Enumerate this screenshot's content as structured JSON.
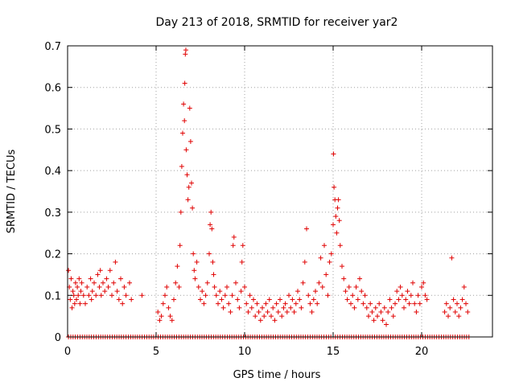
{
  "chart_data": {
    "type": "scatter",
    "title": "Day 213 of 2018, SRMTID for receiver yar2",
    "xlabel": "GPS time / hours",
    "ylabel": "SRMTID / TECUs",
    "xlim": [
      0,
      24
    ],
    "ylim": [
      0,
      0.7
    ],
    "xticks": [
      0,
      5,
      10,
      15,
      20
    ],
    "xtick_labels": [
      "0",
      "5",
      "10",
      "15",
      "20"
    ],
    "yticks": [
      0,
      0.1,
      0.2,
      0.3,
      0.4,
      0.5,
      0.6,
      0.7
    ],
    "ytick_labels": [
      "0",
      "0.1",
      "0.2",
      "0.3",
      "0.4",
      "0.5",
      "0.6",
      "0.7"
    ],
    "grid": true,
    "marker": "+",
    "marker_color": "#e00000",
    "series": [
      {
        "name": "yar2",
        "points": [
          [
            0.05,
            0.16
          ],
          [
            0.1,
            0.12
          ],
          [
            0.15,
            0.09
          ],
          [
            0.2,
            0.14
          ],
          [
            0.25,
            0.07
          ],
          [
            0.3,
            0.11
          ],
          [
            0.35,
            0.1
          ],
          [
            0.4,
            0.08
          ],
          [
            0.45,
            0.13
          ],
          [
            0.5,
            0.09
          ],
          [
            0.55,
            0.12
          ],
          [
            0.6,
            0.1
          ],
          [
            0.65,
            0.14
          ],
          [
            0.7,
            0.08
          ],
          [
            0.75,
            0.11
          ],
          [
            0.8,
            0.13
          ],
          [
            0.9,
            0.1
          ],
          [
            1.0,
            0.08
          ],
          [
            1.1,
            0.12
          ],
          [
            1.2,
            0.1
          ],
          [
            1.3,
            0.14
          ],
          [
            1.35,
            0.09
          ],
          [
            1.4,
            0.11
          ],
          [
            1.5,
            0.13
          ],
          [
            1.6,
            0.1
          ],
          [
            1.7,
            0.15
          ],
          [
            1.8,
            0.12
          ],
          [
            1.85,
            0.16
          ],
          [
            1.9,
            0.1
          ],
          [
            2.0,
            0.13
          ],
          [
            2.1,
            0.11
          ],
          [
            2.2,
            0.14
          ],
          [
            2.3,
            0.12
          ],
          [
            2.4,
            0.16
          ],
          [
            2.5,
            0.1
          ],
          [
            2.6,
            0.13
          ],
          [
            2.7,
            0.18
          ],
          [
            2.8,
            0.11
          ],
          [
            2.9,
            0.09
          ],
          [
            3.0,
            0.14
          ],
          [
            3.1,
            0.08
          ],
          [
            3.2,
            0.12
          ],
          [
            3.3,
            0.1
          ],
          [
            3.5,
            0.13
          ],
          [
            3.6,
            0.09
          ],
          [
            4.2,
            0.1
          ],
          [
            5.1,
            0.06
          ],
          [
            5.2,
            0.04
          ],
          [
            5.3,
            0.05
          ],
          [
            5.4,
            0.08
          ],
          [
            5.5,
            0.1
          ],
          [
            5.6,
            0.12
          ],
          [
            5.7,
            0.07
          ],
          [
            5.8,
            0.05
          ],
          [
            5.9,
            0.04
          ],
          [
            6.0,
            0.09
          ],
          [
            6.1,
            0.13
          ],
          [
            6.2,
            0.17
          ],
          [
            6.3,
            0.12
          ],
          [
            6.35,
            0.22
          ],
          [
            6.4,
            0.3
          ],
          [
            6.45,
            0.41
          ],
          [
            6.5,
            0.49
          ],
          [
            6.55,
            0.56
          ],
          [
            6.6,
            0.52
          ],
          [
            6.62,
            0.61
          ],
          [
            6.65,
            0.68
          ],
          [
            6.68,
            0.69
          ],
          [
            6.7,
            0.45
          ],
          [
            6.75,
            0.39
          ],
          [
            6.8,
            0.33
          ],
          [
            6.85,
            0.36
          ],
          [
            6.9,
            0.55
          ],
          [
            6.95,
            0.47
          ],
          [
            7.0,
            0.37
          ],
          [
            7.05,
            0.31
          ],
          [
            7.1,
            0.2
          ],
          [
            7.15,
            0.16
          ],
          [
            7.2,
            0.14
          ],
          [
            7.3,
            0.18
          ],
          [
            7.4,
            0.12
          ],
          [
            7.5,
            0.09
          ],
          [
            7.6,
            0.11
          ],
          [
            7.7,
            0.08
          ],
          [
            7.8,
            0.1
          ],
          [
            7.9,
            0.13
          ],
          [
            8.0,
            0.2
          ],
          [
            8.05,
            0.27
          ],
          [
            8.1,
            0.3
          ],
          [
            8.15,
            0.26
          ],
          [
            8.2,
            0.18
          ],
          [
            8.25,
            0.15
          ],
          [
            8.3,
            0.12
          ],
          [
            8.4,
            0.1
          ],
          [
            8.5,
            0.08
          ],
          [
            8.6,
            0.11
          ],
          [
            8.7,
            0.09
          ],
          [
            8.8,
            0.07
          ],
          [
            8.9,
            0.1
          ],
          [
            9.0,
            0.12
          ],
          [
            9.1,
            0.08
          ],
          [
            9.2,
            0.06
          ],
          [
            9.3,
            0.1
          ],
          [
            9.35,
            0.22
          ],
          [
            9.4,
            0.24
          ],
          [
            9.5,
            0.13
          ],
          [
            9.6,
            0.09
          ],
          [
            9.7,
            0.07
          ],
          [
            9.8,
            0.11
          ],
          [
            9.85,
            0.18
          ],
          [
            9.9,
            0.22
          ],
          [
            10.0,
            0.12
          ],
          [
            10.1,
            0.08
          ],
          [
            10.2,
            0.06
          ],
          [
            10.3,
            0.1
          ],
          [
            10.4,
            0.07
          ],
          [
            10.5,
            0.09
          ],
          [
            10.6,
            0.05
          ],
          [
            10.7,
            0.08
          ],
          [
            10.8,
            0.06
          ],
          [
            10.9,
            0.04
          ],
          [
            11.0,
            0.07
          ],
          [
            11.1,
            0.05
          ],
          [
            11.2,
            0.08
          ],
          [
            11.3,
            0.06
          ],
          [
            11.4,
            0.09
          ],
          [
            11.5,
            0.05
          ],
          [
            11.6,
            0.07
          ],
          [
            11.7,
            0.04
          ],
          [
            11.8,
            0.08
          ],
          [
            11.9,
            0.06
          ],
          [
            12.0,
            0.09
          ],
          [
            12.1,
            0.05
          ],
          [
            12.2,
            0.07
          ],
          [
            12.3,
            0.08
          ],
          [
            12.4,
            0.06
          ],
          [
            12.5,
            0.1
          ],
          [
            12.6,
            0.07
          ],
          [
            12.7,
            0.09
          ],
          [
            12.8,
            0.06
          ],
          [
            12.9,
            0.08
          ],
          [
            13.0,
            0.11
          ],
          [
            13.1,
            0.09
          ],
          [
            13.2,
            0.07
          ],
          [
            13.3,
            0.13
          ],
          [
            13.4,
            0.18
          ],
          [
            13.5,
            0.26
          ],
          [
            13.6,
            0.1
          ],
          [
            13.7,
            0.08
          ],
          [
            13.8,
            0.06
          ],
          [
            13.9,
            0.09
          ],
          [
            14.0,
            0.11
          ],
          [
            14.1,
            0.08
          ],
          [
            14.2,
            0.13
          ],
          [
            14.3,
            0.19
          ],
          [
            14.4,
            0.12
          ],
          [
            14.5,
            0.22
          ],
          [
            14.6,
            0.15
          ],
          [
            14.7,
            0.1
          ],
          [
            14.8,
            0.18
          ],
          [
            14.9,
            0.2
          ],
          [
            15.0,
            0.27
          ],
          [
            15.02,
            0.44
          ],
          [
            15.05,
            0.36
          ],
          [
            15.1,
            0.33
          ],
          [
            15.15,
            0.29
          ],
          [
            15.2,
            0.25
          ],
          [
            15.25,
            0.31
          ],
          [
            15.3,
            0.33
          ],
          [
            15.35,
            0.28
          ],
          [
            15.4,
            0.22
          ],
          [
            15.5,
            0.17
          ],
          [
            15.6,
            0.14
          ],
          [
            15.7,
            0.11
          ],
          [
            15.8,
            0.09
          ],
          [
            15.9,
            0.12
          ],
          [
            16.0,
            0.08
          ],
          [
            16.1,
            0.1
          ],
          [
            16.2,
            0.07
          ],
          [
            16.3,
            0.12
          ],
          [
            16.4,
            0.09
          ],
          [
            16.5,
            0.14
          ],
          [
            16.6,
            0.11
          ],
          [
            16.7,
            0.08
          ],
          [
            16.8,
            0.1
          ],
          [
            16.9,
            0.07
          ],
          [
            17.0,
            0.05
          ],
          [
            17.1,
            0.08
          ],
          [
            17.2,
            0.06
          ],
          [
            17.3,
            0.04
          ],
          [
            17.4,
            0.07
          ],
          [
            17.5,
            0.05
          ],
          [
            17.6,
            0.08
          ],
          [
            17.7,
            0.06
          ],
          [
            17.8,
            0.04
          ],
          [
            17.9,
            0.07
          ],
          [
            18.0,
            0.03
          ],
          [
            18.1,
            0.06
          ],
          [
            18.2,
            0.09
          ],
          [
            18.3,
            0.07
          ],
          [
            18.4,
            0.05
          ],
          [
            18.5,
            0.08
          ],
          [
            18.6,
            0.11
          ],
          [
            18.7,
            0.09
          ],
          [
            18.8,
            0.12
          ],
          [
            18.9,
            0.1
          ],
          [
            19.0,
            0.07
          ],
          [
            19.1,
            0.09
          ],
          [
            19.2,
            0.11
          ],
          [
            19.3,
            0.08
          ],
          [
            19.4,
            0.1
          ],
          [
            19.5,
            0.13
          ],
          [
            19.6,
            0.08
          ],
          [
            19.7,
            0.06
          ],
          [
            19.8,
            0.1
          ],
          [
            19.9,
            0.08
          ],
          [
            20.0,
            0.12
          ],
          [
            20.1,
            0.13
          ],
          [
            20.2,
            0.1
          ],
          [
            20.3,
            0.09
          ],
          [
            21.3,
            0.06
          ],
          [
            21.4,
            0.08
          ],
          [
            21.5,
            0.05
          ],
          [
            21.6,
            0.07
          ],
          [
            21.7,
            0.19
          ],
          [
            21.8,
            0.09
          ],
          [
            21.9,
            0.06
          ],
          [
            22.0,
            0.08
          ],
          [
            22.1,
            0.05
          ],
          [
            22.2,
            0.07
          ],
          [
            22.3,
            0.09
          ],
          [
            22.4,
            0.12
          ],
          [
            22.5,
            0.08
          ],
          [
            22.6,
            0.06
          ]
        ]
      }
    ]
  }
}
